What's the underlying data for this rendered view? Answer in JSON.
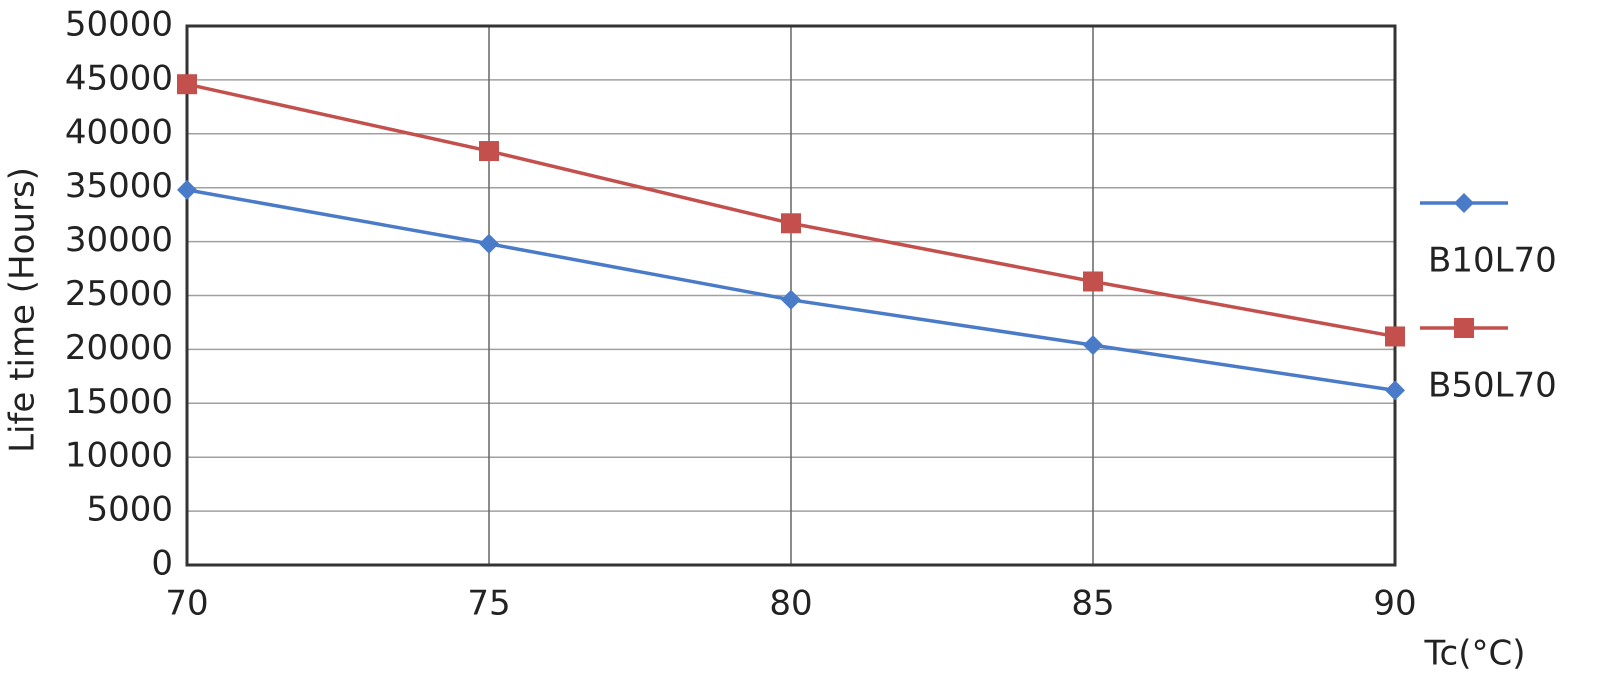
{
  "chart_data": {
    "type": "line",
    "x_label": "Tc(°C)",
    "y_label": "Life time (Hours)",
    "x": [
      70,
      75,
      80,
      85,
      90
    ],
    "series": [
      {
        "name": "B10L70",
        "color": "#4a7bc8",
        "marker": "diamond",
        "values": [
          34800,
          29800,
          24600,
          20400,
          16200
        ]
      },
      {
        "name": "B50L70",
        "color": "#c3504d",
        "marker": "square",
        "values": [
          44600,
          38400,
          31700,
          26300,
          21200
        ]
      }
    ],
    "xlim": [
      70,
      90
    ],
    "xticks": [
      70,
      75,
      80,
      85,
      90
    ],
    "ylim": [
      0,
      50000
    ],
    "yticks": [
      0,
      5000,
      10000,
      15000,
      20000,
      25000,
      30000,
      35000,
      40000,
      45000,
      50000
    ],
    "grid": true,
    "legend": "right"
  }
}
